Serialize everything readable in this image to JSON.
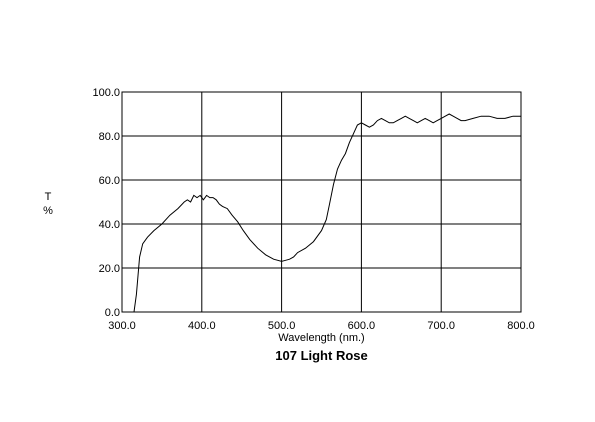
{
  "chart_data": {
    "type": "line",
    "title": "107 Light Rose",
    "xlabel": "Wavelength (nm.)",
    "ylabel_top": "T",
    "ylabel_bottom": "%",
    "xlim": [
      300,
      800
    ],
    "ylim": [
      0,
      100
    ],
    "x_ticks": [
      "300.0",
      "400.0",
      "500.0",
      "600.0",
      "700.0",
      "800.0"
    ],
    "y_ticks": [
      "0.0",
      "20.0",
      "40.0",
      "60.0",
      "80.0",
      "100.0"
    ],
    "grid": true,
    "series": [
      {
        "color": "#000000",
        "x": [
          310,
          315,
          318,
          322,
          326,
          332,
          340,
          350,
          360,
          370,
          378,
          382,
          386,
          390,
          394,
          398,
          402,
          406,
          410,
          414,
          418,
          422,
          426,
          432,
          438,
          445,
          452,
          460,
          470,
          480,
          490,
          500,
          505,
          510,
          515,
          520,
          530,
          540,
          550,
          556,
          560,
          565,
          570,
          575,
          580,
          585,
          590,
          595,
          600,
          605,
          610,
          615,
          620,
          625,
          630,
          635,
          640,
          645,
          650,
          655,
          660,
          665,
          670,
          675,
          680,
          685,
          690,
          695,
          700,
          705,
          710,
          715,
          720,
          725,
          730,
          740,
          750,
          760,
          770,
          780,
          790,
          800
        ],
        "y": [
          0,
          0,
          8,
          25,
          31,
          34,
          37,
          40,
          44,
          47,
          50,
          51,
          50,
          53,
          52,
          53,
          51,
          53,
          52,
          52,
          51,
          49,
          48,
          47,
          44,
          41,
          37,
          33,
          29,
          26,
          24,
          23,
          23.5,
          24,
          25,
          27,
          29,
          32,
          37,
          42,
          49,
          58,
          65,
          69,
          72,
          77,
          81,
          85,
          86,
          85,
          84,
          85,
          87,
          88,
          87,
          86,
          86,
          87,
          88,
          89,
          88,
          87,
          86,
          87,
          88,
          87,
          86,
          87,
          88,
          89,
          90,
          89,
          88,
          87,
          87,
          88,
          89,
          89,
          88,
          88,
          89,
          89
        ]
      }
    ]
  }
}
